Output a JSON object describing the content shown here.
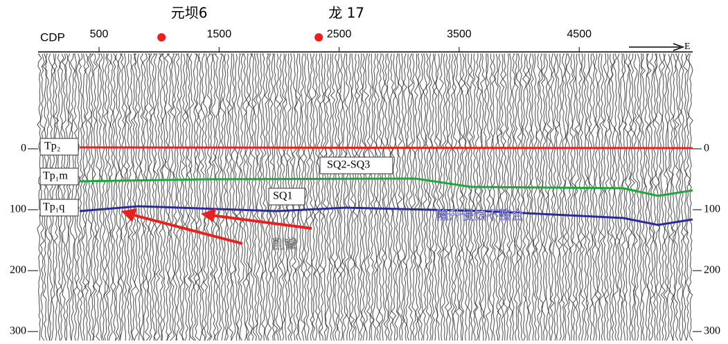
{
  "top_axis": {
    "label": "CDP",
    "ticks": [
      500,
      1500,
      2500,
      3500,
      4500
    ]
  },
  "depth_axis": {
    "ticks": [
      0,
      100,
      200,
      300
    ]
  },
  "wells": [
    {
      "label": "元坝6",
      "cdp": 1020
    },
    {
      "label": "龙 17",
      "cdp": 2330
    }
  ],
  "direction": "E",
  "horizons": [
    {
      "label": "Tp₂"
    },
    {
      "label": "Tp₁m"
    },
    {
      "label": "Tp₁q"
    }
  ],
  "sequences": [
    "SQ2-SQ3",
    "SQ1"
  ],
  "annotations": {
    "unconformity": "隆升侵蚀不整合",
    "truncation": "削截"
  }
}
